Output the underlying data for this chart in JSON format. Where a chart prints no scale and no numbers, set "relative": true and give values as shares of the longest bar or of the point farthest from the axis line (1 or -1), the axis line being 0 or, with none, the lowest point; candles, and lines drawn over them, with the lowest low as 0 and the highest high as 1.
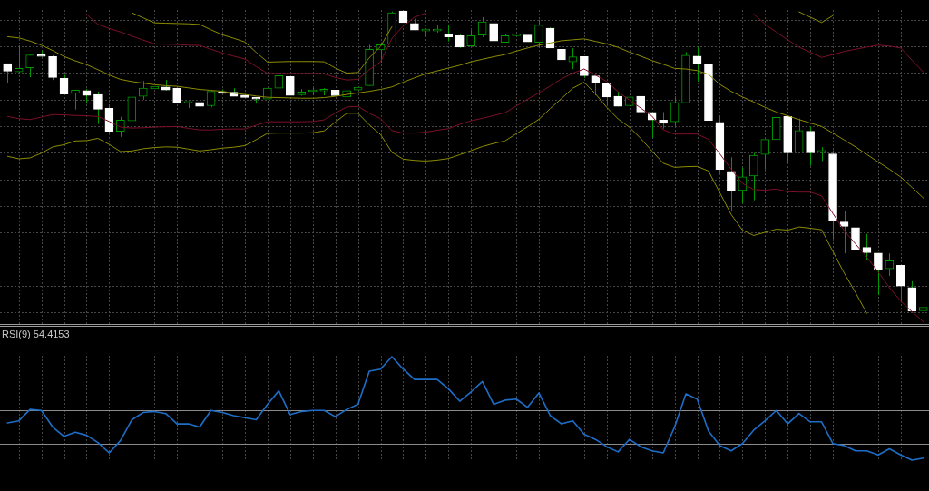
{
  "chart_data": [
    {
      "type": "candlestick",
      "relative": true,
      "grid": true,
      "color": "#009a00",
      "categories": [
        null,
        null,
        null,
        null,
        null,
        null,
        null,
        null,
        null,
        null,
        null,
        null,
        null,
        null,
        null,
        null,
        null,
        null,
        null,
        null,
        null,
        null,
        null,
        null,
        null,
        null,
        null,
        null,
        null,
        null,
        null,
        null,
        null,
        null,
        null,
        null,
        null,
        null,
        null,
        null,
        null,
        null,
        null,
        null,
        null,
        null,
        null,
        null,
        null,
        null,
        null,
        null,
        null,
        null,
        null,
        null,
        null,
        null,
        null,
        null,
        null,
        null,
        null,
        null,
        null,
        null,
        null,
        null,
        null,
        null,
        null,
        null,
        null,
        null,
        null,
        null,
        null,
        null,
        null,
        null,
        null,
        null
      ],
      "ohlc": [
        [
          0.829,
          0.829,
          0.767,
          0.805
        ],
        [
          0.803,
          0.887,
          0.799,
          0.814
        ],
        [
          0.816,
          0.858,
          0.786,
          0.857
        ],
        [
          0.855,
          0.87,
          0.851,
          0.852
        ],
        [
          0.852,
          0.856,
          0.777,
          0.785
        ],
        [
          0.782,
          0.793,
          0.731,
          0.732
        ],
        [
          0.734,
          0.745,
          0.683,
          0.745
        ],
        [
          0.743,
          0.749,
          0.704,
          0.728
        ],
        [
          0.731,
          0.74,
          0.637,
          0.684
        ],
        [
          0.687,
          0.699,
          0.608,
          0.614
        ],
        [
          0.614,
          0.66,
          0.596,
          0.649
        ],
        [
          0.647,
          0.725,
          0.635,
          0.723
        ],
        [
          0.725,
          0.774,
          0.714,
          0.751
        ],
        [
          0.749,
          0.757,
          0.749,
          0.757
        ],
        [
          0.755,
          0.777,
          0.743,
          0.745
        ],
        [
          0.751,
          0.752,
          0.706,
          0.706
        ],
        [
          0.703,
          0.709,
          0.688,
          0.704
        ],
        [
          0.706,
          0.706,
          0.693,
          0.693
        ],
        [
          0.695,
          0.741,
          0.69,
          0.741
        ],
        [
          0.738,
          0.747,
          0.734,
          0.734
        ],
        [
          0.738,
          0.751,
          0.725,
          0.725
        ],
        [
          0.729,
          0.729,
          0.721,
          0.721
        ],
        [
          0.722,
          0.722,
          0.702,
          0.716
        ],
        [
          0.716,
          0.751,
          0.716,
          0.751
        ],
        [
          0.751,
          0.791,
          0.751,
          0.791
        ],
        [
          0.788,
          0.788,
          0.728,
          0.728
        ],
        [
          0.73,
          0.748,
          0.727,
          0.739
        ],
        [
          0.74,
          0.752,
          0.728,
          0.741
        ],
        [
          0.742,
          0.751,
          0.728,
          0.743
        ],
        [
          0.745,
          0.745,
          0.727,
          0.727
        ],
        [
          0.723,
          0.751,
          0.723,
          0.743
        ],
        [
          0.745,
          0.754,
          0.745,
          0.754
        ],
        [
          0.759,
          0.889,
          0.759,
          0.875
        ],
        [
          0.873,
          0.897,
          0.832,
          0.889
        ],
        [
          0.891,
          0.995,
          0.891,
          0.991
        ],
        [
          0.997,
          1,
          0.96,
          0.96
        ],
        [
          0.957,
          0.972,
          0.936,
          0.936
        ],
        [
          0.933,
          0.94,
          0.919,
          0.934
        ],
        [
          0.933,
          0.953,
          0.928,
          0.934
        ],
        [
          0.923,
          0.953,
          0.9,
          0.914
        ],
        [
          0.918,
          0.922,
          0.879,
          0.882
        ],
        [
          0.885,
          0.936,
          0.885,
          0.918
        ],
        [
          0.92,
          0.977,
          0.914,
          0.962
        ],
        [
          0.957,
          0.957,
          0.901,
          0.901
        ],
        [
          0.897,
          0.924,
          0.897,
          0.918
        ],
        [
          0.918,
          0.92,
          0.917,
          0.919
        ],
        [
          0.92,
          0.92,
          0.898,
          0.898
        ],
        [
          0.897,
          0.969,
          0.879,
          0.952
        ],
        [
          0.942,
          0.945,
          0.879,
          0.879
        ],
        [
          0.875,
          0.902,
          0.827,
          0.841
        ],
        [
          0.835,
          0.878,
          0.812,
          0.851
        ],
        [
          0.852,
          0.852,
          0.783,
          0.791
        ],
        [
          0.79,
          0.79,
          0.728,
          0.769
        ],
        [
          0.767,
          0.767,
          0.695,
          0.723
        ],
        [
          0.725,
          0.74,
          0.693,
          0.693
        ],
        [
          0.695,
          0.723,
          0.695,
          0.723
        ],
        [
          0.725,
          0.756,
          0.675,
          0.675
        ],
        [
          0.674,
          0.674,
          0.593,
          0.65
        ],
        [
          0.649,
          0.675,
          0.622,
          0.639
        ],
        [
          0.644,
          0.725,
          0.629,
          0.706
        ],
        [
          0.704,
          0.866,
          0.704,
          0.856
        ],
        [
          0.853,
          0.882,
          0.772,
          0.829
        ],
        [
          0.827,
          0.847,
          0.648,
          0.648
        ],
        [
          0.642,
          0.664,
          0.478,
          0.492
        ],
        [
          0.486,
          0.531,
          0.358,
          0.425
        ],
        [
          0.425,
          0.499,
          0.384,
          0.469
        ],
        [
          0.471,
          0.545,
          0.394,
          0.537
        ],
        [
          0.54,
          0.588,
          0.492,
          0.588
        ],
        [
          0.587,
          0.668,
          0.587,
          0.658
        ],
        [
          0.661,
          0.665,
          0.512,
          0.545
        ],
        [
          0.547,
          0.654,
          0.545,
          0.616
        ],
        [
          0.614,
          0.629,
          0.504,
          0.545
        ],
        [
          0.547,
          0.563,
          0.519,
          0.548
        ],
        [
          0.542,
          0.553,
          0.271,
          0.329
        ],
        [
          0.325,
          0.359,
          0.225,
          0.311
        ],
        [
          0.307,
          0.365,
          0.176,
          0.238
        ],
        [
          0.244,
          0.287,
          0.203,
          0.227
        ],
        [
          0.226,
          0.226,
          0.092,
          0.173
        ],
        [
          0.176,
          0.225,
          0.153,
          0.201
        ],
        [
          0.187,
          0.187,
          0.068,
          0.121
        ],
        [
          0.116,
          0.136,
          0.041,
          0.041
        ],
        [
          0.042,
          0.08,
          0,
          0.053
        ]
      ],
      "colors": [
        "#ffffff",
        "#009a00",
        "#009a00",
        "#ffffff",
        "#ffffff",
        "#ffffff",
        "#009a00",
        "#ffffff",
        "#ffffff",
        "#ffffff",
        "#009a00",
        "#009a00",
        "#009a00",
        "#009a00",
        "#ffffff",
        "#ffffff",
        "#009a00",
        "#ffffff",
        "#009a00",
        "#ffffff",
        "#ffffff",
        "#ffffff",
        "#ffffff",
        "#009a00",
        "#009a00",
        "#ffffff",
        "#009a00",
        "#009a00",
        "#009a00",
        "#ffffff",
        "#009a00",
        "#009a00",
        "#009a00",
        "#009a00",
        "#009a00",
        "#ffffff",
        "#ffffff",
        "#009a00",
        "#009a00",
        "#ffffff",
        "#ffffff",
        "#009a00",
        "#009a00",
        "#ffffff",
        "#009a00",
        "#009a00",
        "#ffffff",
        "#009a00",
        "#ffffff",
        "#ffffff",
        "#009a00",
        "#ffffff",
        "#ffffff",
        "#ffffff",
        "#ffffff",
        "#009a00",
        "#ffffff",
        "#ffffff",
        "#ffffff",
        "#009a00",
        "#009a00",
        "#ffffff",
        "#ffffff",
        "#ffffff",
        "#ffffff",
        "#009a00",
        "#009a00",
        "#009a00",
        "#009a00",
        "#ffffff",
        "#009a00",
        "#ffffff",
        "#009a00",
        "#ffffff",
        "#ffffff",
        "#ffffff",
        "#ffffff",
        "#ffffff",
        "#009a00",
        "#ffffff",
        "#ffffff",
        "#009a00"
      ],
      "series": [
        {
          "type": "line",
          "color": "#8c8c00",
          "values": [
            null,
            null,
            null,
            null,
            null,
            null,
            null,
            null,
            null,
            null,
            null,
            0.991,
            0.975,
            0.959,
            0.958,
            0.957,
            0.956,
            0.954,
            0.937,
            0.921,
            0.91,
            0.898,
            0.865,
            0.834,
            0.835,
            0.836,
            0.836,
            0.836,
            0.835,
            0.815,
            0.799,
            0.801,
            0.848,
            0.884,
            0.947,
            null,
            null,
            null,
            null,
            null,
            null,
            null,
            null,
            null,
            null,
            null,
            null,
            null,
            null,
            null,
            null,
            null,
            null,
            null,
            null,
            null,
            null,
            null,
            null,
            null,
            null,
            null,
            null,
            null,
            null,
            null,
            null,
            null,
            null,
            null,
            0.994,
            0.977,
            0.96,
            0.982,
            null,
            null,
            null,
            null,
            null,
            null,
            null,
            null
          ]
        },
        {
          "type": "line",
          "color": "#7d1028",
          "values": [
            null,
            null,
            null,
            null,
            null,
            null,
            null,
            0.986,
            0.954,
            0.941,
            0.93,
            0.917,
            0.904,
            0.892,
            0.891,
            0.89,
            0.888,
            0.887,
            0.875,
            0.863,
            0.853,
            0.844,
            0.82,
            0.798,
            0.798,
            0.798,
            0.798,
            0.798,
            0.797,
            0.785,
            0.777,
            0.779,
            0.81,
            0.835,
            0.91,
            0.949,
            0.977,
            0.99,
            null,
            null,
            null,
            null,
            null,
            null,
            null,
            null,
            null,
            null,
            null,
            null,
            null,
            null,
            null,
            null,
            null,
            null,
            null,
            null,
            null,
            null,
            null,
            null,
            null,
            null,
            null,
            null,
            0.987,
            0.955,
            0.929,
            0.905,
            0.882,
            0.865,
            0.849,
            0.858,
            0.868,
            0.875,
            0.882,
            0.888,
            0.885,
            0.879,
            0.84,
            0.802
          ]
        },
        {
          "type": "line",
          "color": "#8c8c00",
          "values": [
            0.915,
            0.911,
            0.901,
            0.888,
            0.871,
            0.852,
            0.838,
            0.826,
            0.81,
            0.793,
            0.779,
            0.772,
            0.767,
            0.762,
            0.759,
            0.757,
            0.752,
            0.747,
            0.744,
            0.741,
            0.735,
            0.731,
            0.726,
            0.722,
            0.721,
            0.72,
            0.719,
            0.719,
            0.721,
            0.725,
            0.731,
            0.736,
            0.741,
            0.747,
            0.755,
            0.77,
            0.784,
            0.797,
            0.806,
            0.815,
            0.824,
            0.835,
            0.843,
            0.851,
            0.858,
            0.869,
            0.879,
            0.888,
            0.895,
            0.902,
            0.905,
            0.908,
            0.9,
            0.892,
            0.881,
            0.866,
            0.853,
            0.839,
            0.827,
            0.814,
            0.812,
            0.807,
            0.795,
            0.763,
            0.741,
            0.723,
            0.707,
            0.69,
            0.675,
            0.663,
            0.651,
            0.64,
            0.629,
            0.608,
            0.586,
            0.564,
            0.54,
            0.516,
            0.493,
            0.468,
            0.435,
            0.401
          ]
        },
        {
          "type": "line",
          "color": "#7d1028",
          "values": [
            0.661,
            0.654,
            0.651,
            0.659,
            0.667,
            0.666,
            0.664,
            0.663,
            0.661,
            0.645,
            0.627,
            0.624,
            0.625,
            0.627,
            0.628,
            0.629,
            0.623,
            0.618,
            0.618,
            0.62,
            0.621,
            0.621,
            0.633,
            0.644,
            0.644,
            0.644,
            0.644,
            0.645,
            0.65,
            0.672,
            0.691,
            0.693,
            0.671,
            0.654,
            0.616,
            0.608,
            0.608,
            0.611,
            0.617,
            0.622,
            0.636,
            0.647,
            0.655,
            0.664,
            0.673,
            0.694,
            0.716,
            0.736,
            0.758,
            0.781,
            0.799,
            0.812,
            0.793,
            0.772,
            0.74,
            0.713,
            0.688,
            0.662,
            0.618,
            0.605,
            0.605,
            0.605,
            0.588,
            0.542,
            0.493,
            0.448,
            0.428,
            0.426,
            0.43,
            0.421,
            0.42,
            0.42,
            0.408,
            0.352,
            0.297,
            0.255,
            0.213,
            0.166,
            0.116,
            0.073,
            0.039,
            0.007
          ]
        },
        {
          "type": "line",
          "color": "#8c8c00",
          "values": [
            0.534,
            0.526,
            0.529,
            0.544,
            0.564,
            0.571,
            0.583,
            0.584,
            0.591,
            0.572,
            0.549,
            0.551,
            0.558,
            0.562,
            0.564,
            0.563,
            0.557,
            0.551,
            0.555,
            0.56,
            0.563,
            0.568,
            0.587,
            0.607,
            0.608,
            0.608,
            0.608,
            0.609,
            0.615,
            0.643,
            0.671,
            0.671,
            0.634,
            0.603,
            0.547,
            0.525,
            0.521,
            0.519,
            0.522,
            0.527,
            0.539,
            0.552,
            0.565,
            0.575,
            0.583,
            0.606,
            0.628,
            0.652,
            0.686,
            0.718,
            0.751,
            0.77,
            0.733,
            0.69,
            0.653,
            0.627,
            0.591,
            0.551,
            0.512,
            0.499,
            0.501,
            0.502,
            0.487,
            0.418,
            0.349,
            0.299,
            0.282,
            0.292,
            0.302,
            0.299,
            0.309,
            0.305,
            0.3,
            0.231,
            0.162,
            0.1,
            0.034,
            null,
            null,
            null,
            null,
            null
          ]
        }
      ]
    },
    {
      "type": "line",
      "relative": true,
      "grid": "x",
      "title": "RSI(9) 54.4153",
      "color": "#1e6ec8",
      "categories": [
        null,
        null,
        null,
        null,
        null,
        null,
        null,
        null,
        null,
        null,
        null,
        null,
        null,
        null,
        null,
        null,
        null,
        null,
        null,
        null,
        null,
        null,
        null,
        null,
        null,
        null,
        null,
        null,
        null,
        null,
        null,
        null,
        null,
        null,
        null,
        null,
        null,
        null,
        null,
        null,
        null,
        null,
        null,
        null,
        null,
        null,
        null,
        null,
        null,
        null,
        null,
        null,
        null,
        null,
        null,
        null,
        null,
        null,
        null,
        null,
        null,
        null,
        null,
        null,
        null,
        null,
        null,
        null,
        null,
        null,
        null,
        null,
        null,
        null,
        null,
        null,
        null,
        null,
        null,
        null,
        null,
        null
      ],
      "values": [
        0.36,
        0.38,
        0.49,
        0.48,
        0.32,
        0.23,
        0.27,
        0.24,
        0.17,
        0.07,
        0.19,
        0.39,
        0.46,
        0.47,
        0.45,
        0.35,
        0.35,
        0.32,
        0.48,
        0.46,
        0.43,
        0.41,
        0.39,
        0.54,
        0.67,
        0.44,
        0.47,
        0.48,
        0.48,
        0.42,
        0.49,
        0.54,
        0.86,
        0.88,
        1,
        0.88,
        0.78,
        0.78,
        0.78,
        0.69,
        0.57,
        0.66,
        0.76,
        0.54,
        0.58,
        0.59,
        0.51,
        0.65,
        0.43,
        0.35,
        0.38,
        0.25,
        0.2,
        0.13,
        0.08,
        0.2,
        0.13,
        0.09,
        0.07,
        0.32,
        0.64,
        0.59,
        0.28,
        0.14,
        0.09,
        0.16,
        0.29,
        0.38,
        0.48,
        0.35,
        0.45,
        0.37,
        0.37,
        0.16,
        0.14,
        0.09,
        0.09,
        0.05,
        0.11,
        0.05,
        0,
        0.02
      ],
      "ref_lines": [
        {
          "axis": "y",
          "value": 0.8,
          "color": "#8a8a8a"
        },
        {
          "axis": "y",
          "value": 0.48,
          "color": "#8a8a8a"
        },
        {
          "axis": "y",
          "value": 0.16,
          "color": "#8a8a8a"
        }
      ]
    }
  ]
}
